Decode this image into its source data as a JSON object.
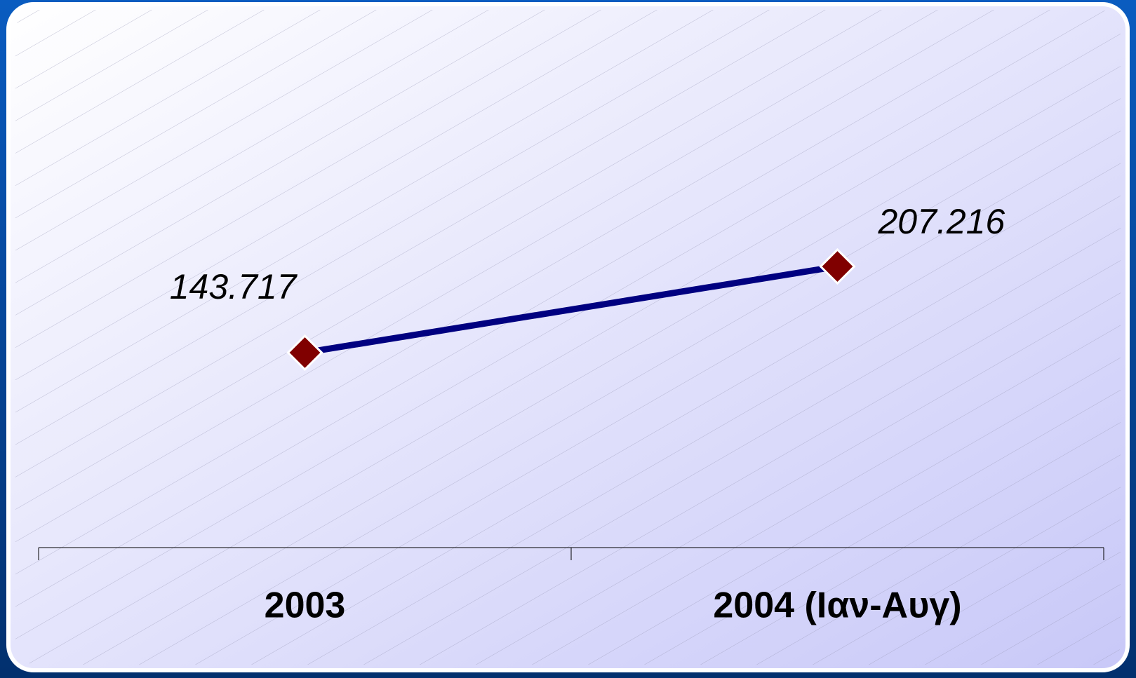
{
  "chart_data": {
    "type": "line",
    "categories": [
      "2003",
      "2004 (Ιαν-Αυγ)"
    ],
    "values": [
      143.717,
      207.216
    ],
    "color": "#000080",
    "marker_color": "#800000",
    "ylim": [
      0,
      400
    ]
  }
}
